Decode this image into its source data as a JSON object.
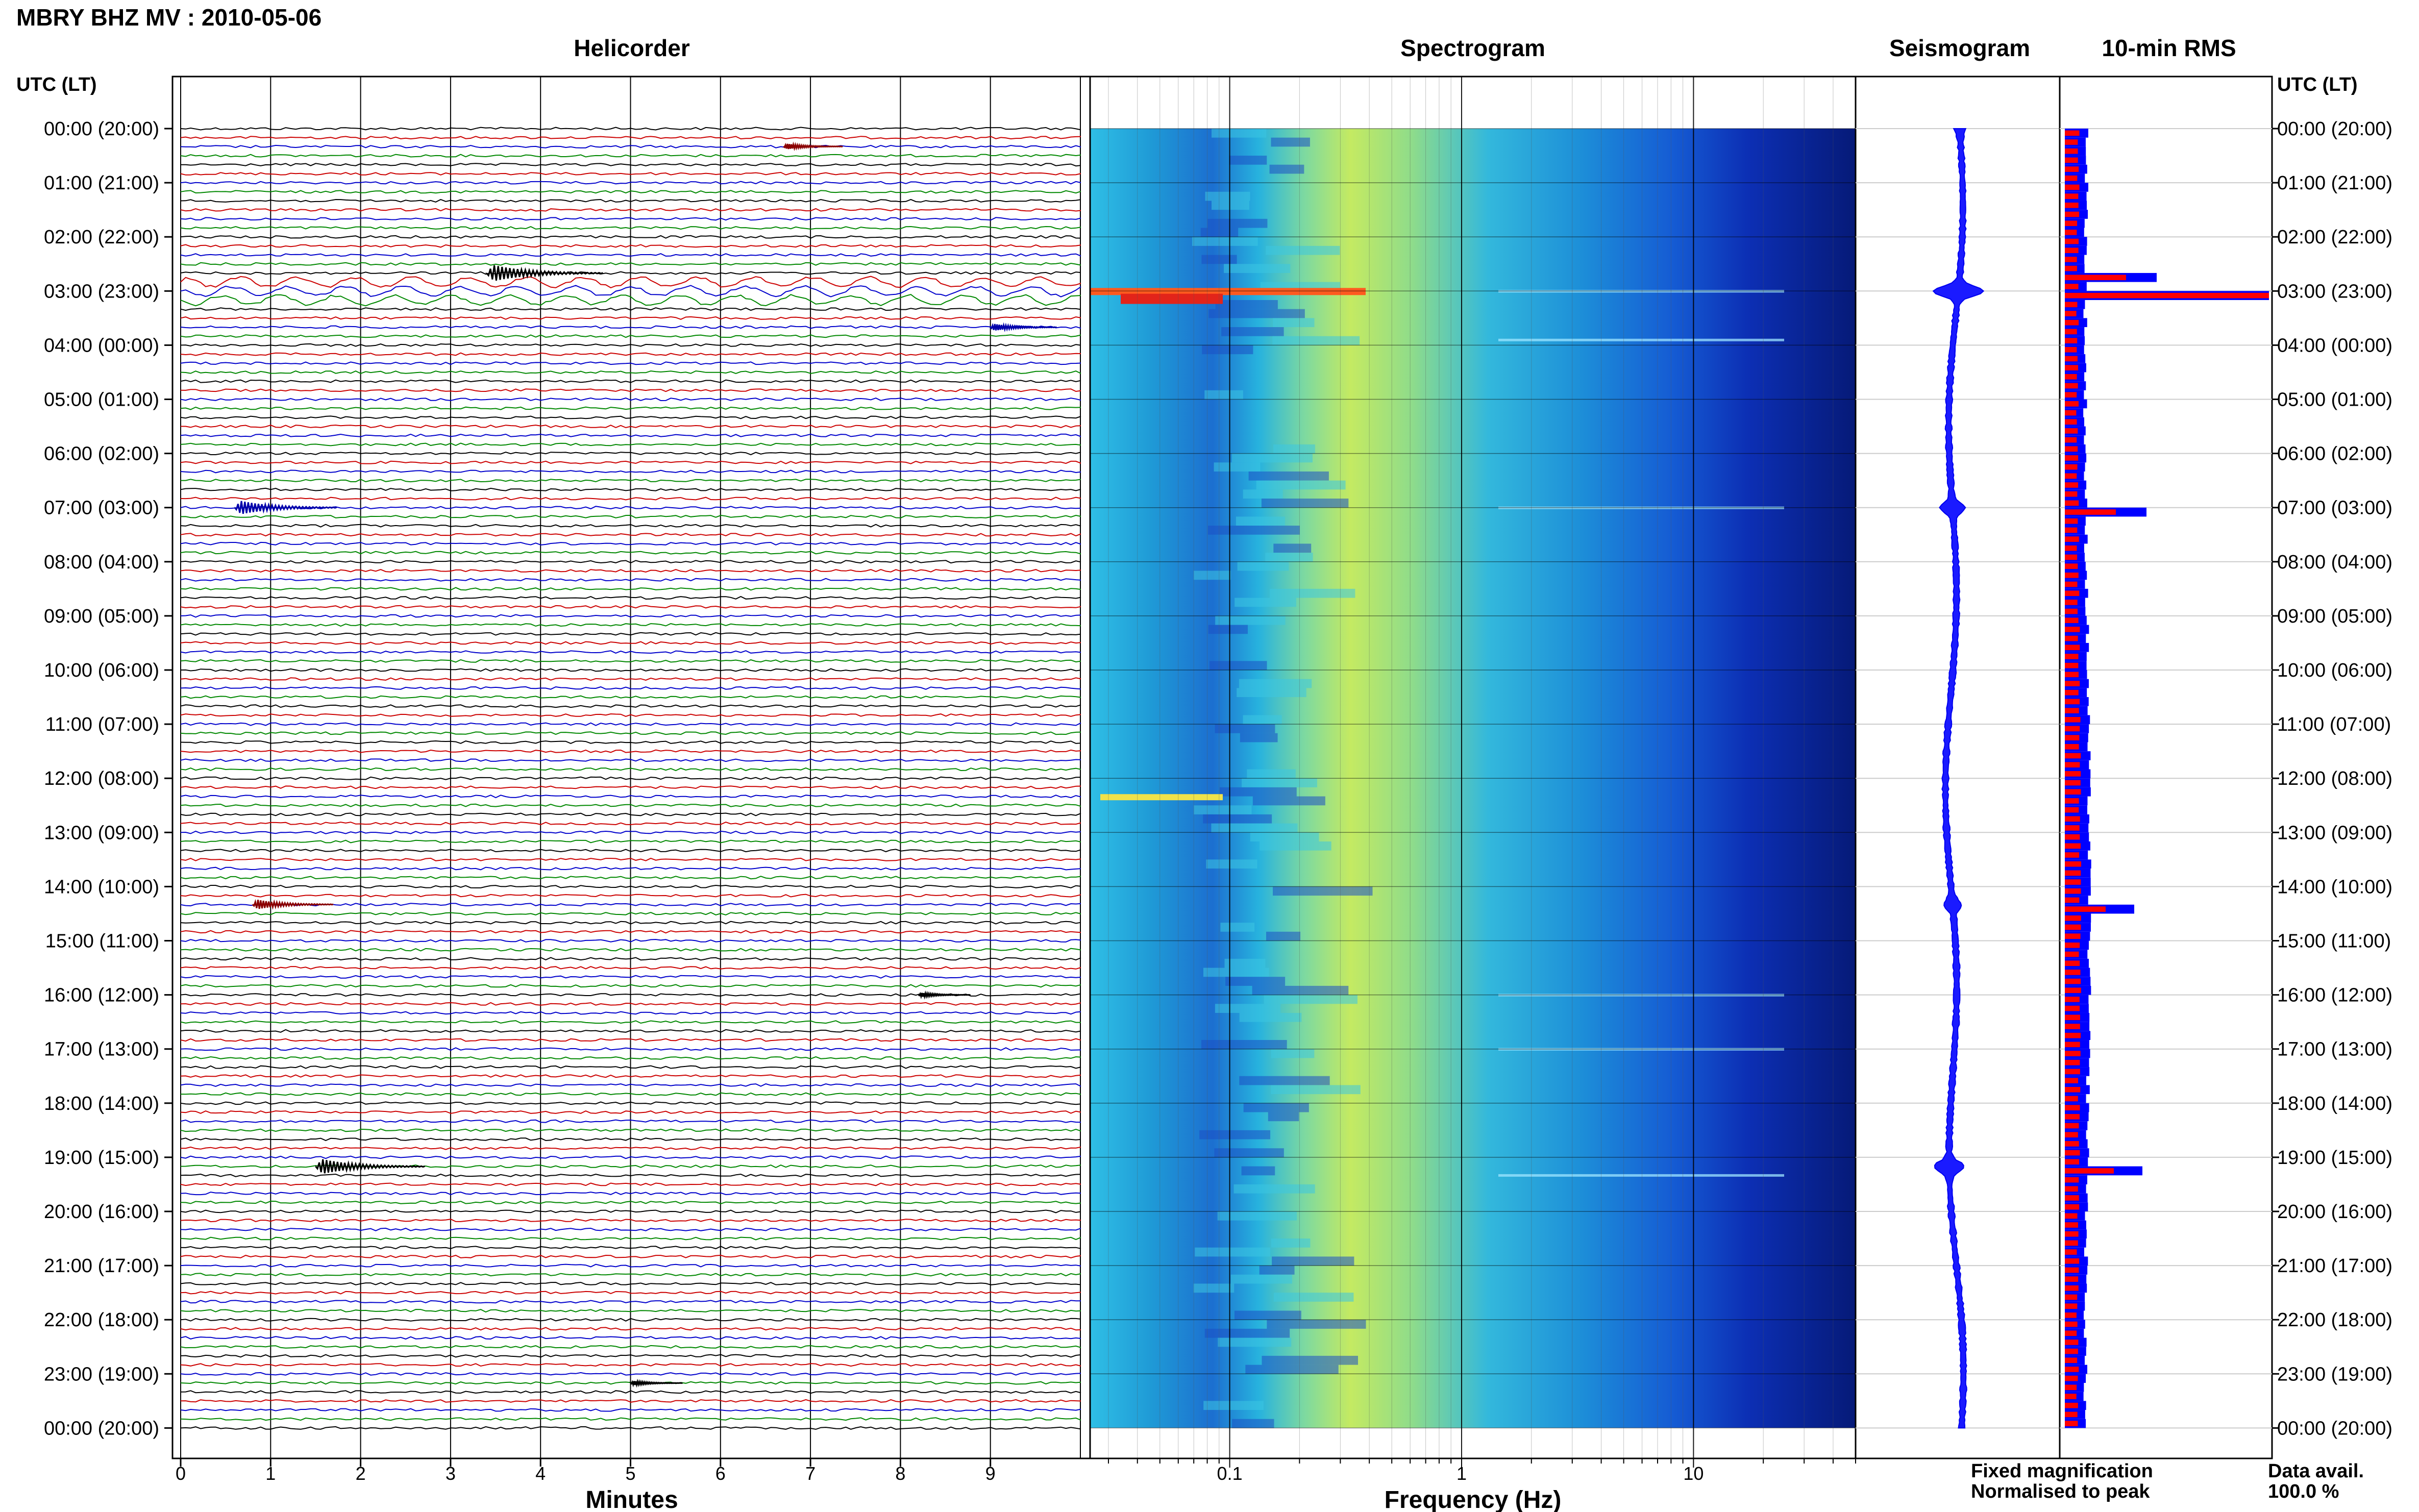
{
  "title": "MBRY BHZ MV : 2010-05-06",
  "panels": {
    "helicorder": "Helicorder",
    "spectrogram": "Spectrogram",
    "seismogram": "Seismogram",
    "rms": "10-min RMS"
  },
  "time_axis_label": "UTC (LT)",
  "time_labels": [
    "00:00 (20:00)",
    "01:00 (21:00)",
    "02:00 (22:00)",
    "03:00 (23:00)",
    "04:00 (00:00)",
    "05:00 (01:00)",
    "06:00 (02:00)",
    "07:00 (03:00)",
    "08:00 (04:00)",
    "09:00 (05:00)",
    "10:00 (06:00)",
    "11:00 (07:00)",
    "12:00 (08:00)",
    "13:00 (09:00)",
    "14:00 (10:00)",
    "15:00 (11:00)",
    "16:00 (12:00)",
    "17:00 (13:00)",
    "18:00 (14:00)",
    "19:00 (15:00)",
    "20:00 (16:00)",
    "21:00 (17:00)",
    "22:00 (18:00)",
    "23:00 (19:00)",
    "00:00 (20:00)"
  ],
  "legend": {
    "fixed": "Fixed magnification",
    "fixed_color": "#0000ff",
    "normalised": "Normalised to peak",
    "normalised_color": "#ff0000"
  },
  "data_avail_label": "Data avail.",
  "data_avail_value": "100.0 %",
  "chart_data": [
    {
      "type": "line",
      "title": "Helicorder",
      "xlabel": "Minutes",
      "x_ticks": [
        "0",
        "1",
        "2",
        "3",
        "4",
        "5",
        "6",
        "7",
        "8",
        "9"
      ],
      "xlim": [
        0,
        10
      ],
      "trace_colors": [
        "#000000",
        "#cc0000",
        "#0000cc",
        "#008800"
      ],
      "events": [
        {
          "hour": 0.33,
          "minute": 6.7,
          "amplitude": 2.0
        },
        {
          "hour": 2.67,
          "minute": 3.4,
          "amplitude": 6.0
        },
        {
          "hour": 3.67,
          "minute": 9.0,
          "amplitude": 2.5
        },
        {
          "hour": 7.0,
          "minute": 0.6,
          "amplitude": 5.0
        },
        {
          "hour": 14.33,
          "minute": 0.8,
          "amplitude": 3.5
        },
        {
          "hour": 16.0,
          "minute": 8.2,
          "amplitude": 1.5
        },
        {
          "hour": 19.17,
          "minute": 1.5,
          "amplitude": 5.5
        },
        {
          "hour": 23.17,
          "minute": 5.0,
          "amplitude": 1.5
        }
      ]
    },
    {
      "type": "heatmap",
      "title": "Spectrogram",
      "xlabel": "Frequency (Hz)",
      "x_ticks": [
        "0.1",
        "1",
        "10"
      ],
      "x_scale": "log",
      "xlim": [
        0.025,
        50
      ]
    },
    {
      "type": "line",
      "title": "Seismogram",
      "envelope": [
        {
          "hour": 0,
          "halfwidth": 1.0
        },
        {
          "hour": 3.0,
          "halfwidth": 9.0
        },
        {
          "hour": 7.0,
          "halfwidth": 4.0
        },
        {
          "hour": 14.33,
          "halfwidth": 2.5
        },
        {
          "hour": 19.17,
          "halfwidth": 5.0
        }
      ]
    },
    {
      "type": "bar",
      "title": "10-min RMS",
      "series": [
        {
          "name": "Fixed magnification",
          "color": "#0000ff"
        },
        {
          "name": "Normalised to peak",
          "color": "#ff0000"
        }
      ],
      "peaks": [
        {
          "hour": 2.67,
          "fixed": 0.45,
          "normalised": 0.3
        },
        {
          "hour": 3.0,
          "fixed": 1.0,
          "normalised": 1.0
        },
        {
          "hour": 7.0,
          "fixed": 0.4,
          "normalised": 0.25
        },
        {
          "hour": 14.33,
          "fixed": 0.34,
          "normalised": 0.2
        },
        {
          "hour": 19.17,
          "fixed": 0.38,
          "normalised": 0.24
        }
      ]
    }
  ]
}
